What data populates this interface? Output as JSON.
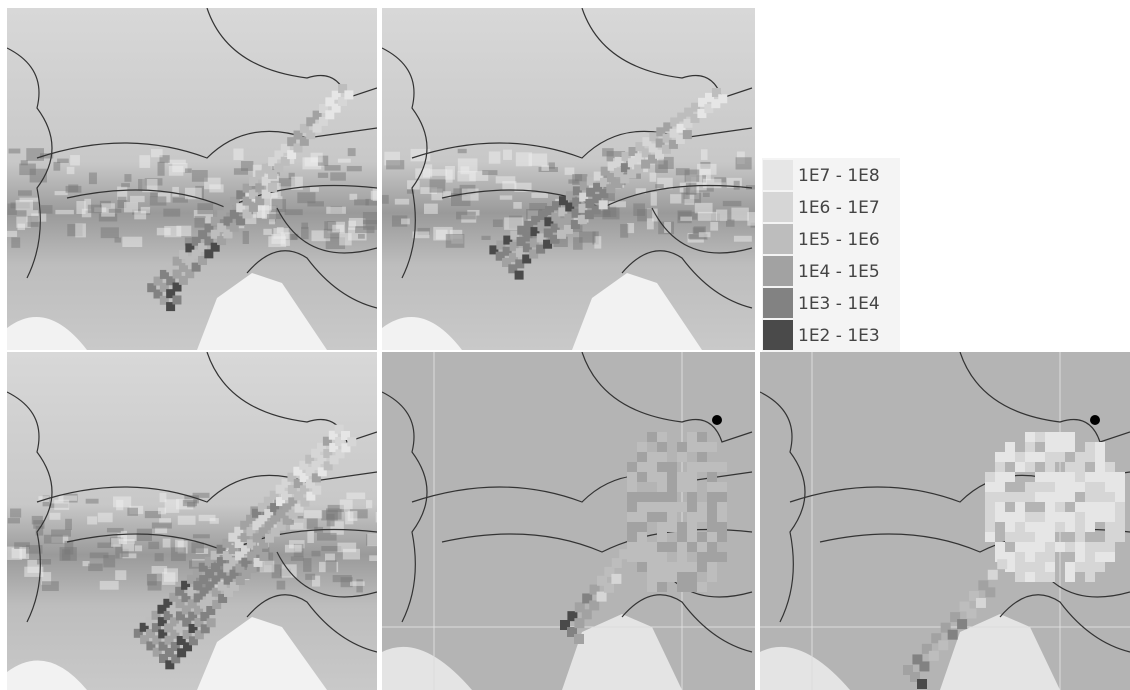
{
  "legend": {
    "items": [
      {
        "label": "1E7 - 1E8",
        "color": "#e6e6e6"
      },
      {
        "label": "1E6 - 1E7",
        "color": "#d6d6d6"
      },
      {
        "label": "1E5 - 1E6",
        "color": "#bdbdbd"
      },
      {
        "label": "1E4 - 1E5",
        "color": "#a2a2a2"
      },
      {
        "label": "1E3 - 1E4",
        "color": "#828282"
      },
      {
        "label": "1E2 - 1E3",
        "color": "#4a4a4a"
      }
    ]
  }
}
